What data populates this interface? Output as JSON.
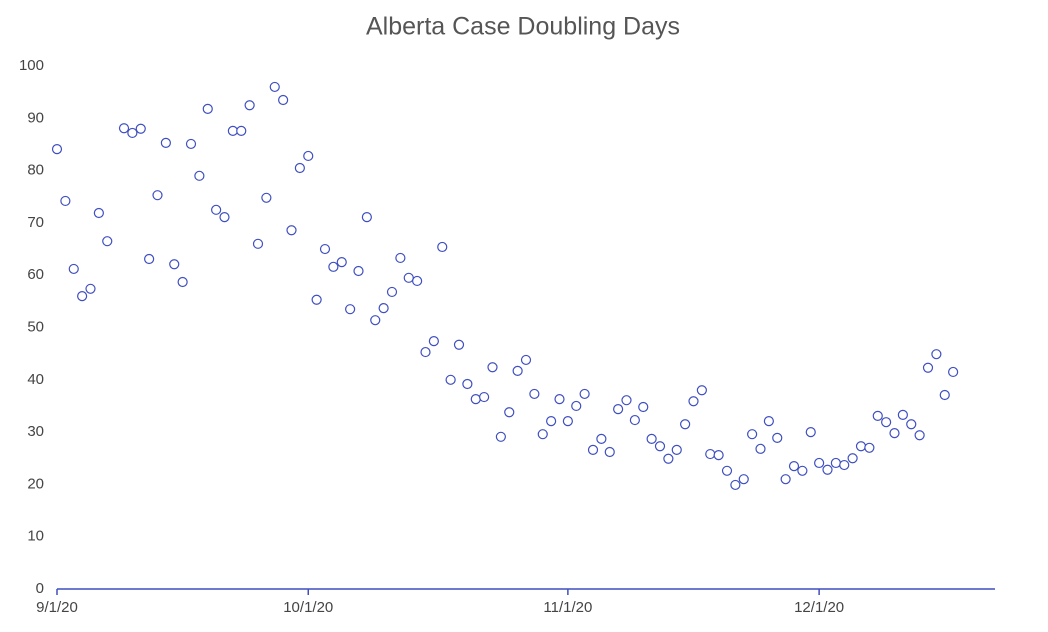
{
  "chart_data": {
    "type": "scatter",
    "title": "Alberta Case Doubling Days",
    "x": [
      "9/1/20",
      "9/2/20",
      "9/3/20",
      "9/4/20",
      "9/5/20",
      "9/6/20",
      "9/7/20",
      "9/9/20",
      "9/10/20",
      "9/11/20",
      "9/12/20",
      "9/13/20",
      "9/14/20",
      "9/15/20",
      "9/16/20",
      "9/17/20",
      "9/18/20",
      "9/19/20",
      "9/20/20",
      "9/21/20",
      "9/22/20",
      "9/23/20",
      "9/24/20",
      "9/25/20",
      "9/26/20",
      "9/27/20",
      "9/28/20",
      "9/29/20",
      "9/30/20",
      "10/1/20",
      "10/2/20",
      "10/3/20",
      "10/4/20",
      "10/5/20",
      "10/6/20",
      "10/7/20",
      "10/8/20",
      "10/9/20",
      "10/10/20",
      "10/11/20",
      "10/12/20",
      "10/13/20",
      "10/14/20",
      "10/15/20",
      "10/16/20",
      "10/17/20",
      "10/18/20",
      "10/19/20",
      "10/20/20",
      "10/21/20",
      "10/22/20",
      "10/23/20",
      "10/24/20",
      "10/25/20",
      "10/26/20",
      "10/27/20",
      "10/28/20",
      "10/29/20",
      "10/30/20",
      "10/31/20",
      "11/1/20",
      "11/2/20",
      "11/3/20",
      "11/4/20",
      "11/5/20",
      "11/6/20",
      "11/7/20",
      "11/8/20",
      "11/9/20",
      "11/10/20",
      "11/11/20",
      "11/12/20",
      "11/13/20",
      "11/14/20",
      "11/15/20",
      "11/16/20",
      "11/17/20",
      "11/18/20",
      "11/19/20",
      "11/20/20",
      "11/21/20",
      "11/22/20",
      "11/23/20",
      "11/24/20",
      "11/25/20",
      "11/26/20",
      "11/27/20",
      "11/28/20",
      "11/29/20",
      "11/30/20",
      "12/1/20",
      "12/2/20",
      "12/3/20",
      "12/4/20",
      "12/5/20",
      "12/6/20",
      "12/7/20",
      "12/8/20",
      "12/9/20",
      "12/10/20",
      "12/11/20",
      "12/12/20",
      "12/13/20",
      "12/14/20",
      "12/15/20",
      "12/16/20",
      "12/17/20"
    ],
    "values": [
      84.1,
      74.2,
      61.2,
      56.0,
      57.4,
      71.9,
      66.5,
      88.1,
      87.2,
      88.0,
      63.1,
      75.3,
      85.3,
      62.1,
      58.7,
      85.1,
      79.0,
      91.8,
      72.5,
      71.1,
      87.6,
      87.6,
      92.5,
      66.0,
      74.8,
      96.0,
      93.5,
      68.6,
      80.5,
      82.8,
      55.3,
      65.0,
      61.6,
      62.5,
      53.5,
      60.8,
      71.1,
      51.4,
      53.7,
      56.8,
      63.3,
      59.5,
      58.9,
      45.3,
      47.4,
      65.4,
      40.0,
      46.7,
      39.2,
      36.3,
      36.7,
      42.4,
      29.1,
      33.8,
      41.7,
      43.8,
      37.3,
      29.6,
      32.1,
      36.3,
      32.1,
      35.0,
      37.3,
      26.6,
      28.7,
      26.2,
      34.4,
      36.1,
      32.3,
      34.8,
      28.7,
      27.3,
      24.9,
      26.6,
      31.5,
      35.9,
      38.0,
      25.8,
      25.6,
      22.6,
      19.9,
      21.0,
      29.6,
      26.8,
      32.1,
      28.9,
      21.0,
      23.5,
      22.6,
      30.0,
      24.1,
      22.8,
      24.1,
      23.7,
      25.0,
      27.3,
      27.0,
      33.1,
      31.9,
      29.8,
      33.3,
      31.5,
      29.4,
      42.3,
      44.9,
      37.1,
      41.5
    ],
    "color": "#3f4fc0",
    "xlim": [
      "9/1/20",
      "12/22/20"
    ],
    "xticks": [
      "9/1/20",
      "10/1/20",
      "11/1/20",
      "12/1/20"
    ],
    "ylim": [
      0,
      100
    ],
    "yticks": [
      0,
      10,
      20,
      30,
      40,
      50,
      60,
      70,
      80,
      90,
      100
    ],
    "grid": false
  }
}
